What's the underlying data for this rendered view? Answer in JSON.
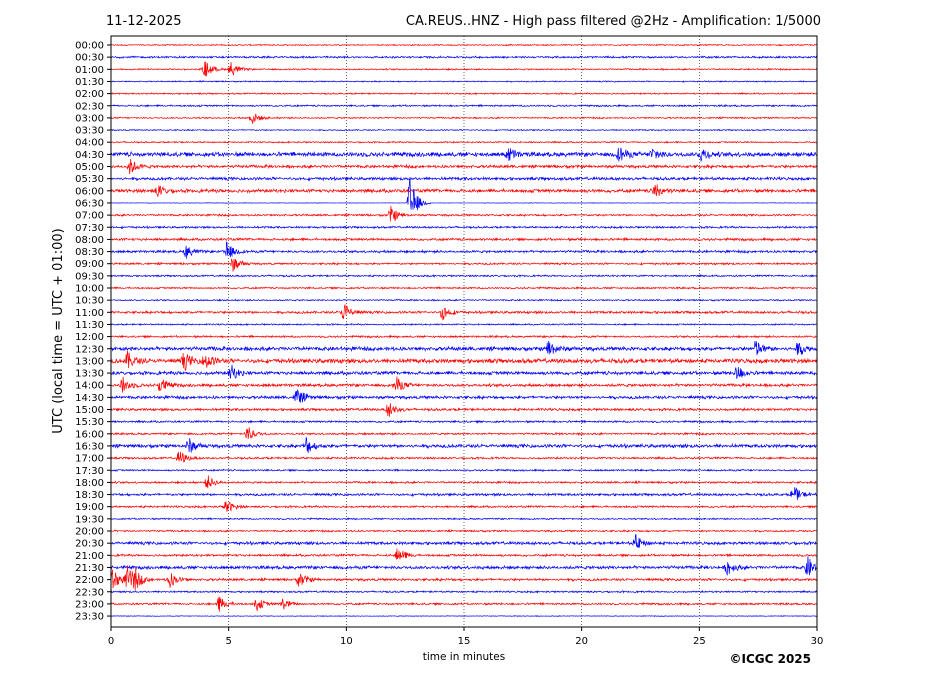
{
  "header": {
    "date": "11-12-2025",
    "title": "CA.REUS..HNZ - High pass filtered @2Hz - Amplification: 1/5000"
  },
  "footer": {
    "copyright": "©ICGC 2025"
  },
  "colors": {
    "even_trace": "#ff0000",
    "odd_trace": "#0000ff",
    "frame": "#000000",
    "grid": "#000000"
  },
  "chart_data": {
    "type": "line",
    "title": "CA.REUS..HNZ - High pass filtered @2Hz - Amplification: 1/5000",
    "xlabel": "time in minutes",
    "ylabel": "UTC (local time = UTC + 01:00)",
    "xlim": [
      0,
      30
    ],
    "x_ticks": [
      0,
      5,
      10,
      15,
      20,
      25,
      30
    ],
    "grid": "vertical dotted lines at 5, 10, 15, 20, 25",
    "rows": [
      "00:00",
      "00:30",
      "01:00",
      "01:30",
      "02:00",
      "02:30",
      "03:00",
      "03:30",
      "04:00",
      "04:30",
      "05:00",
      "05:30",
      "06:00",
      "06:30",
      "07:00",
      "07:30",
      "08:00",
      "08:30",
      "09:00",
      "09:30",
      "10:00",
      "10:30",
      "11:00",
      "11:30",
      "12:00",
      "12:30",
      "13:00",
      "13:30",
      "14:00",
      "14:30",
      "15:00",
      "15:30",
      "16:00",
      "16:30",
      "17:00",
      "17:30",
      "18:00",
      "18:30",
      "19:00",
      "19:30",
      "20:00",
      "20:30",
      "21:00",
      "21:30",
      "22:00",
      "22:30",
      "23:00",
      "23:30"
    ],
    "row_noise_level": [
      0.5,
      0.8,
      0.6,
      0.5,
      0.6,
      0.7,
      0.6,
      0.5,
      0.6,
      1.8,
      1.2,
      1.2,
      1.4,
      0.2,
      0.8,
      0.8,
      1.0,
      1.0,
      0.8,
      0.7,
      0.7,
      0.6,
      1.0,
      0.6,
      0.8,
      1.6,
      1.8,
      1.4,
      1.2,
      1.2,
      1.0,
      0.8,
      0.8,
      1.4,
      0.8,
      0.7,
      0.8,
      1.0,
      0.8,
      0.6,
      0.7,
      1.2,
      0.9,
      1.3,
      1.0,
      0.7,
      0.8,
      0.3
    ],
    "events": [
      {
        "row": "01:00",
        "minute": 4.0,
        "amplitude": 9
      },
      {
        "row": "01:00",
        "minute": 5.1,
        "amplitude": 8
      },
      {
        "row": "03:00",
        "minute": 6.0,
        "amplitude": 7
      },
      {
        "row": "04:30",
        "minute": 16.9,
        "amplitude": 7
      },
      {
        "row": "04:30",
        "minute": 21.6,
        "amplitude": 8
      },
      {
        "row": "04:30",
        "minute": 23.0,
        "amplitude": 7
      },
      {
        "row": "04:30",
        "minute": 25.1,
        "amplitude": 7
      },
      {
        "row": "05:00",
        "minute": 0.8,
        "amplitude": 8
      },
      {
        "row": "06:00",
        "minute": 2.0,
        "amplitude": 6
      },
      {
        "row": "06:00",
        "minute": 23.1,
        "amplitude": 8
      },
      {
        "row": "06:30",
        "minute": 12.7,
        "amplitude": 28
      },
      {
        "row": "07:00",
        "minute": 11.9,
        "amplitude": 9
      },
      {
        "row": "08:30",
        "minute": 3.2,
        "amplitude": 7
      },
      {
        "row": "08:30",
        "minute": 4.9,
        "amplitude": 10
      },
      {
        "row": "09:00",
        "minute": 5.2,
        "amplitude": 8
      },
      {
        "row": "11:00",
        "minute": 9.9,
        "amplitude": 10
      },
      {
        "row": "11:00",
        "minute": 14.1,
        "amplitude": 8
      },
      {
        "row": "12:30",
        "minute": 18.6,
        "amplitude": 9
      },
      {
        "row": "12:30",
        "minute": 27.4,
        "amplitude": 9
      },
      {
        "row": "12:30",
        "minute": 29.2,
        "amplitude": 7
      },
      {
        "row": "13:00",
        "minute": 0.7,
        "amplitude": 9
      },
      {
        "row": "13:00",
        "minute": 3.1,
        "amplitude": 9
      },
      {
        "row": "13:00",
        "minute": 4.0,
        "amplitude": 9
      },
      {
        "row": "13:30",
        "minute": 5.1,
        "amplitude": 8
      },
      {
        "row": "13:30",
        "minute": 26.6,
        "amplitude": 8
      },
      {
        "row": "14:00",
        "minute": 0.5,
        "amplitude": 8
      },
      {
        "row": "14:00",
        "minute": 2.1,
        "amplitude": 8
      },
      {
        "row": "14:00",
        "minute": 12.1,
        "amplitude": 9
      },
      {
        "row": "14:30",
        "minute": 7.9,
        "amplitude": 10
      },
      {
        "row": "15:00",
        "minute": 11.8,
        "amplitude": 8
      },
      {
        "row": "16:00",
        "minute": 5.8,
        "amplitude": 8
      },
      {
        "row": "16:30",
        "minute": 3.3,
        "amplitude": 8
      },
      {
        "row": "16:30",
        "minute": 8.3,
        "amplitude": 9
      },
      {
        "row": "17:00",
        "minute": 2.9,
        "amplitude": 8
      },
      {
        "row": "18:00",
        "minute": 4.1,
        "amplitude": 7
      },
      {
        "row": "18:30",
        "minute": 29.0,
        "amplitude": 9
      },
      {
        "row": "19:00",
        "minute": 4.9,
        "amplitude": 7
      },
      {
        "row": "20:30",
        "minute": 22.3,
        "amplitude": 8
      },
      {
        "row": "21:00",
        "minute": 12.2,
        "amplitude": 9
      },
      {
        "row": "21:30",
        "minute": 26.2,
        "amplitude": 8
      },
      {
        "row": "21:30",
        "minute": 29.6,
        "amplitude": 11
      },
      {
        "row": "22:00",
        "minute": 0.1,
        "amplitude": 12
      },
      {
        "row": "22:00",
        "minute": 0.7,
        "amplitude": 12
      },
      {
        "row": "22:00",
        "minute": 1.0,
        "amplitude": 9
      },
      {
        "row": "22:00",
        "minute": 2.5,
        "amplitude": 8
      },
      {
        "row": "22:00",
        "minute": 8.0,
        "amplitude": 8
      },
      {
        "row": "23:00",
        "minute": 4.6,
        "amplitude": 8
      },
      {
        "row": "23:00",
        "minute": 6.2,
        "amplitude": 7
      },
      {
        "row": "23:00",
        "minute": 7.3,
        "amplitude": 6
      }
    ]
  }
}
